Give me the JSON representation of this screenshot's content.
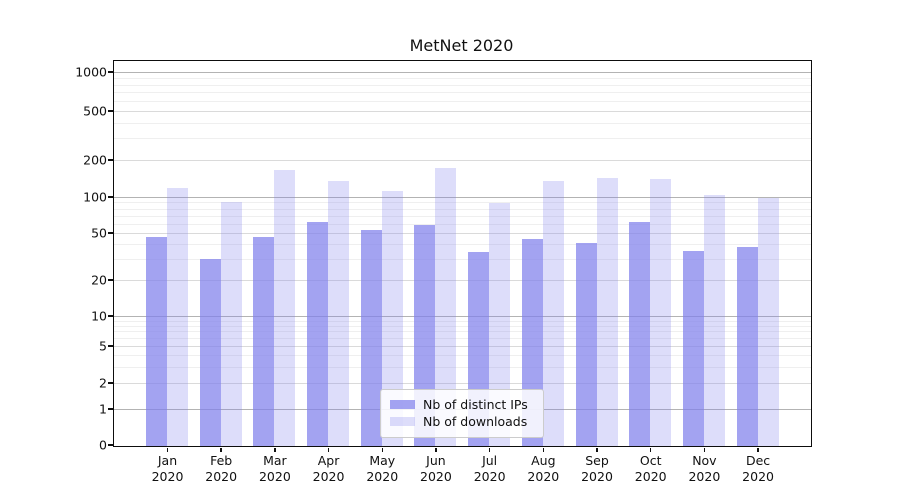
{
  "title": "MetNet 2020",
  "chart_data": {
    "type": "bar",
    "title": "MetNet 2020",
    "categories": [
      "Jan 2020",
      "Feb 2020",
      "Mar 2020",
      "Apr 2020",
      "May 2020",
      "Jun 2020",
      "Jul 2020",
      "Aug 2020",
      "Sep 2020",
      "Oct 2020",
      "Nov 2020",
      "Dec 2020"
    ],
    "series": [
      {
        "name": "Nb of distinct IPs",
        "key": "distinct-ips",
        "color": "rgba(128,128,235,0.72)",
        "values": [
          47,
          31,
          47,
          63,
          54,
          60,
          35,
          45,
          42,
          63,
          36,
          39
        ]
      },
      {
        "name": "Nb of downloads",
        "key": "downloads",
        "color": "rgba(128,128,235,0.27)",
        "values": [
          120,
          93,
          170,
          137,
          115,
          175,
          91,
          137,
          145,
          144,
          105,
          100
        ]
      }
    ],
    "yscale": "log",
    "yticks": [
      0,
      1,
      2,
      5,
      10,
      20,
      50,
      100,
      200,
      500,
      1000
    ],
    "ylim": [
      0,
      1250
    ],
    "xlabel": "",
    "ylabel": "",
    "grid": true,
    "legend_position": "lower center",
    "colors": {
      "bar_dark": "rgba(128,128,235,0.72)",
      "bar_light": "rgba(128,128,235,0.27)"
    }
  }
}
